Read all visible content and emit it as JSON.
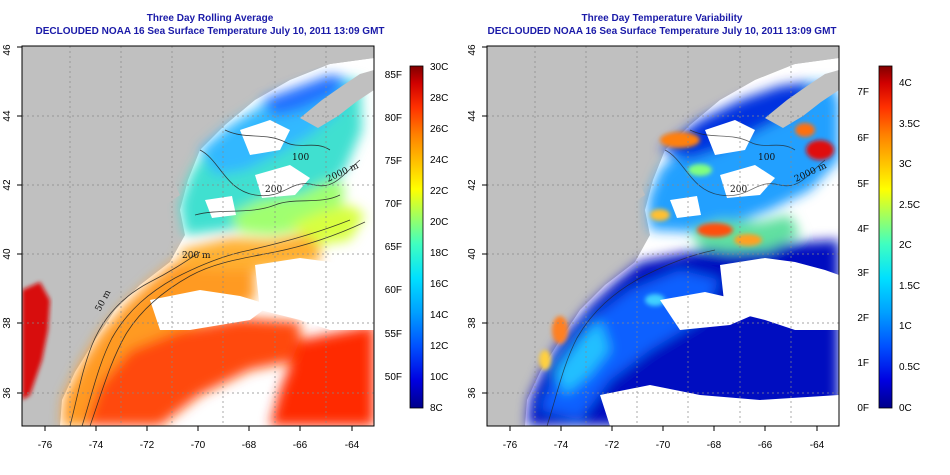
{
  "left_panel": {
    "title_line1": "Three Day Rolling Average",
    "title_line2": "DECLOUDED NOAA 16 Sea Surface Temperature July 10, 2011 13:09 GMT",
    "x_ticks": [
      "-76",
      "-74",
      "-72",
      "-70",
      "-68",
      "-66",
      "-64"
    ],
    "y_ticks": [
      "36",
      "38",
      "40",
      "42",
      "44",
      "46"
    ],
    "colorbar_f": [
      "85F",
      "80F",
      "75F",
      "70F",
      "65F",
      "60F",
      "55F",
      "50F"
    ],
    "colorbar_c": [
      "30C",
      "28C",
      "26C",
      "24C",
      "22C",
      "20C",
      "18C",
      "16C",
      "14C",
      "12C",
      "10C",
      "8C"
    ],
    "contour_labels": [
      "50 m",
      "200 m",
      "100",
      "200",
      "2000 m"
    ]
  },
  "right_panel": {
    "title_line1": "Three Day Temperature Variability",
    "title_line2": "DECLOUDED NOAA 16 Sea Surface Temperature July 10, 2011 13:09 GMT",
    "x_ticks": [
      "-76",
      "-74",
      "-72",
      "-70",
      "-68",
      "-66",
      "-64"
    ],
    "y_ticks": [
      "36",
      "38",
      "40",
      "42",
      "44",
      "46"
    ],
    "colorbar_f": [
      "7F",
      "6F",
      "5F",
      "4F",
      "3F",
      "2F",
      "1F",
      "0F"
    ],
    "colorbar_c": [
      "4C",
      "3.5C",
      "3C",
      "2.5C",
      "2C",
      "1.5C",
      "1C",
      "0.5C",
      "0C"
    ],
    "contour_labels": [
      "100",
      "200",
      "2000 m"
    ]
  },
  "colors": {
    "land": "#c0c0c0",
    "title": "#1a1aa8",
    "sst_scale": [
      "#00008a",
      "#0000e0",
      "#0050ff",
      "#00a0ff",
      "#00e0ff",
      "#40ffc0",
      "#a0ff60",
      "#ffff00",
      "#ffc000",
      "#ff8000",
      "#ff3000",
      "#d00000",
      "#800000"
    ]
  }
}
